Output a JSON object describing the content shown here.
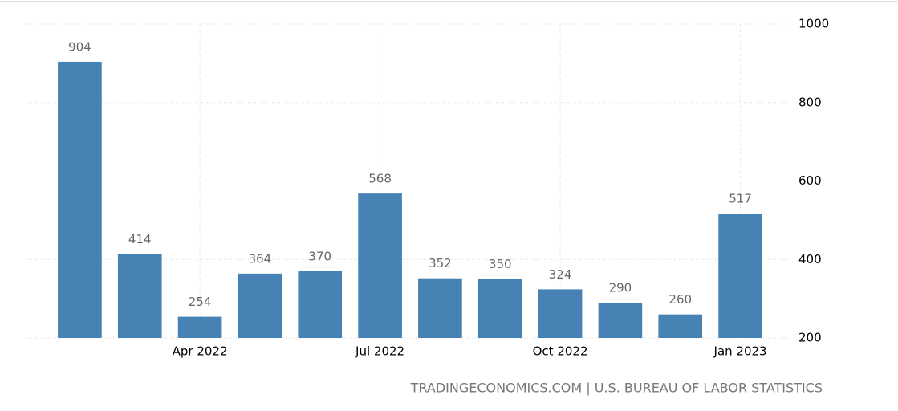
{
  "chart_data": {
    "type": "bar",
    "categories": [
      null,
      null,
      "Apr 2022",
      null,
      null,
      "Jul 2022",
      null,
      null,
      "Oct 2022",
      null,
      null,
      "Jan 2023"
    ],
    "values": [
      904,
      414,
      254,
      364,
      370,
      568,
      352,
      350,
      324,
      290,
      260,
      517
    ],
    "color": "#4682b4",
    "ylim": [
      200,
      1000
    ],
    "yticks": [
      200,
      400,
      600,
      800,
      1000
    ],
    "grid": true,
    "source": "TRADINGECONOMICS.COM | U.S. BUREAU OF LABOR STATISTICS"
  }
}
